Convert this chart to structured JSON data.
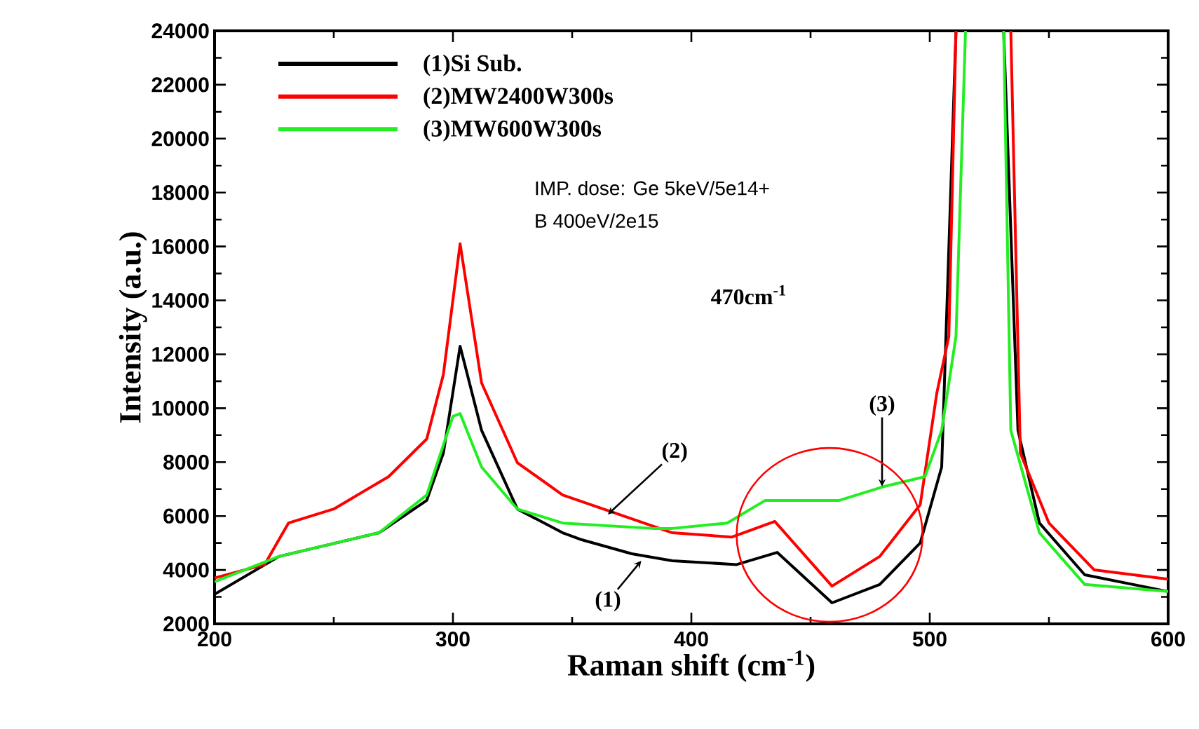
{
  "chart_data": {
    "type": "line",
    "xlabel": "Raman shift (cm$^{-1}$)",
    "ylabel": "Intensity (a.u.)",
    "xlim": [
      200,
      600
    ],
    "xticks": [
      200,
      300,
      400,
      500,
      600
    ],
    "ylim": [
      2000,
      24000
    ],
    "yticks": [
      2000,
      4000,
      6000,
      8000,
      10000,
      12000,
      14000,
      16000,
      18000,
      20000,
      22000,
      24000
    ],
    "legend": "top left",
    "grid": false,
    "marker": "none",
    "line_style": "solid",
    "series": [
      {
        "name": "(1)Si Sub.",
        "color": "#000000",
        "x": [
          200,
          227,
          269,
          289,
          296,
          303,
          312,
          327,
          346,
          354,
          375,
          392,
          419,
          436,
          459,
          479,
          496,
          505,
          511,
          521,
          531,
          537,
          546,
          565,
          600
        ],
        "values": [
          3100,
          4500,
          5380,
          6580,
          8340,
          12300,
          9180,
          6260,
          5380,
          5120,
          4600,
          4340,
          4200,
          4650,
          2780,
          3460,
          5000,
          7820,
          24000,
          null,
          24000,
          9180,
          5740,
          3820,
          3200
        ]
      },
      {
        "name": "(2)MW2400W300s",
        "color": "#ff0000",
        "x": [
          200,
          221,
          231,
          250,
          273,
          289,
          296,
          303,
          312,
          327,
          346,
          375,
          392,
          417,
          435,
          459,
          479,
          496,
          503,
          508,
          511,
          522,
          534,
          538,
          550,
          569,
          600
        ],
        "values": [
          3700,
          4200,
          5740,
          6260,
          7460,
          8860,
          11260,
          16100,
          10940,
          7980,
          6780,
          5900,
          5380,
          5220,
          5800,
          3400,
          4500,
          6420,
          10580,
          12660,
          24000,
          null,
          24000,
          8340,
          5740,
          4000,
          3660
        ]
      },
      {
        "name": "(3)MW600W300s",
        "color": "#22ee22",
        "x": [
          200,
          227,
          269,
          289,
          300,
          303,
          312,
          327,
          346,
          384,
          392,
          415,
          431,
          462,
          481,
          498,
          505,
          511,
          515,
          523,
          531,
          534,
          546,
          565,
          600
        ],
        "values": [
          3560,
          4500,
          5380,
          6780,
          9700,
          9800,
          7820,
          6260,
          5740,
          5540,
          5540,
          5740,
          6580,
          6580,
          7100,
          7460,
          9180,
          12660,
          24000,
          null,
          24000,
          9180,
          5380,
          3460,
          3200
        ]
      }
    ],
    "annotations": [
      "IMP. dose: Ge 5keV/5e14+",
      "B 400eV/2e15",
      "470cm$^{-1}$",
      {
        "text": "(1)",
        "x": 379,
        "y": 4340
      },
      {
        "text": "(2)",
        "x": 365,
        "y": 6060
      },
      {
        "text": "(3)",
        "x": 480,
        "y": 7100
      }
    ]
  }
}
